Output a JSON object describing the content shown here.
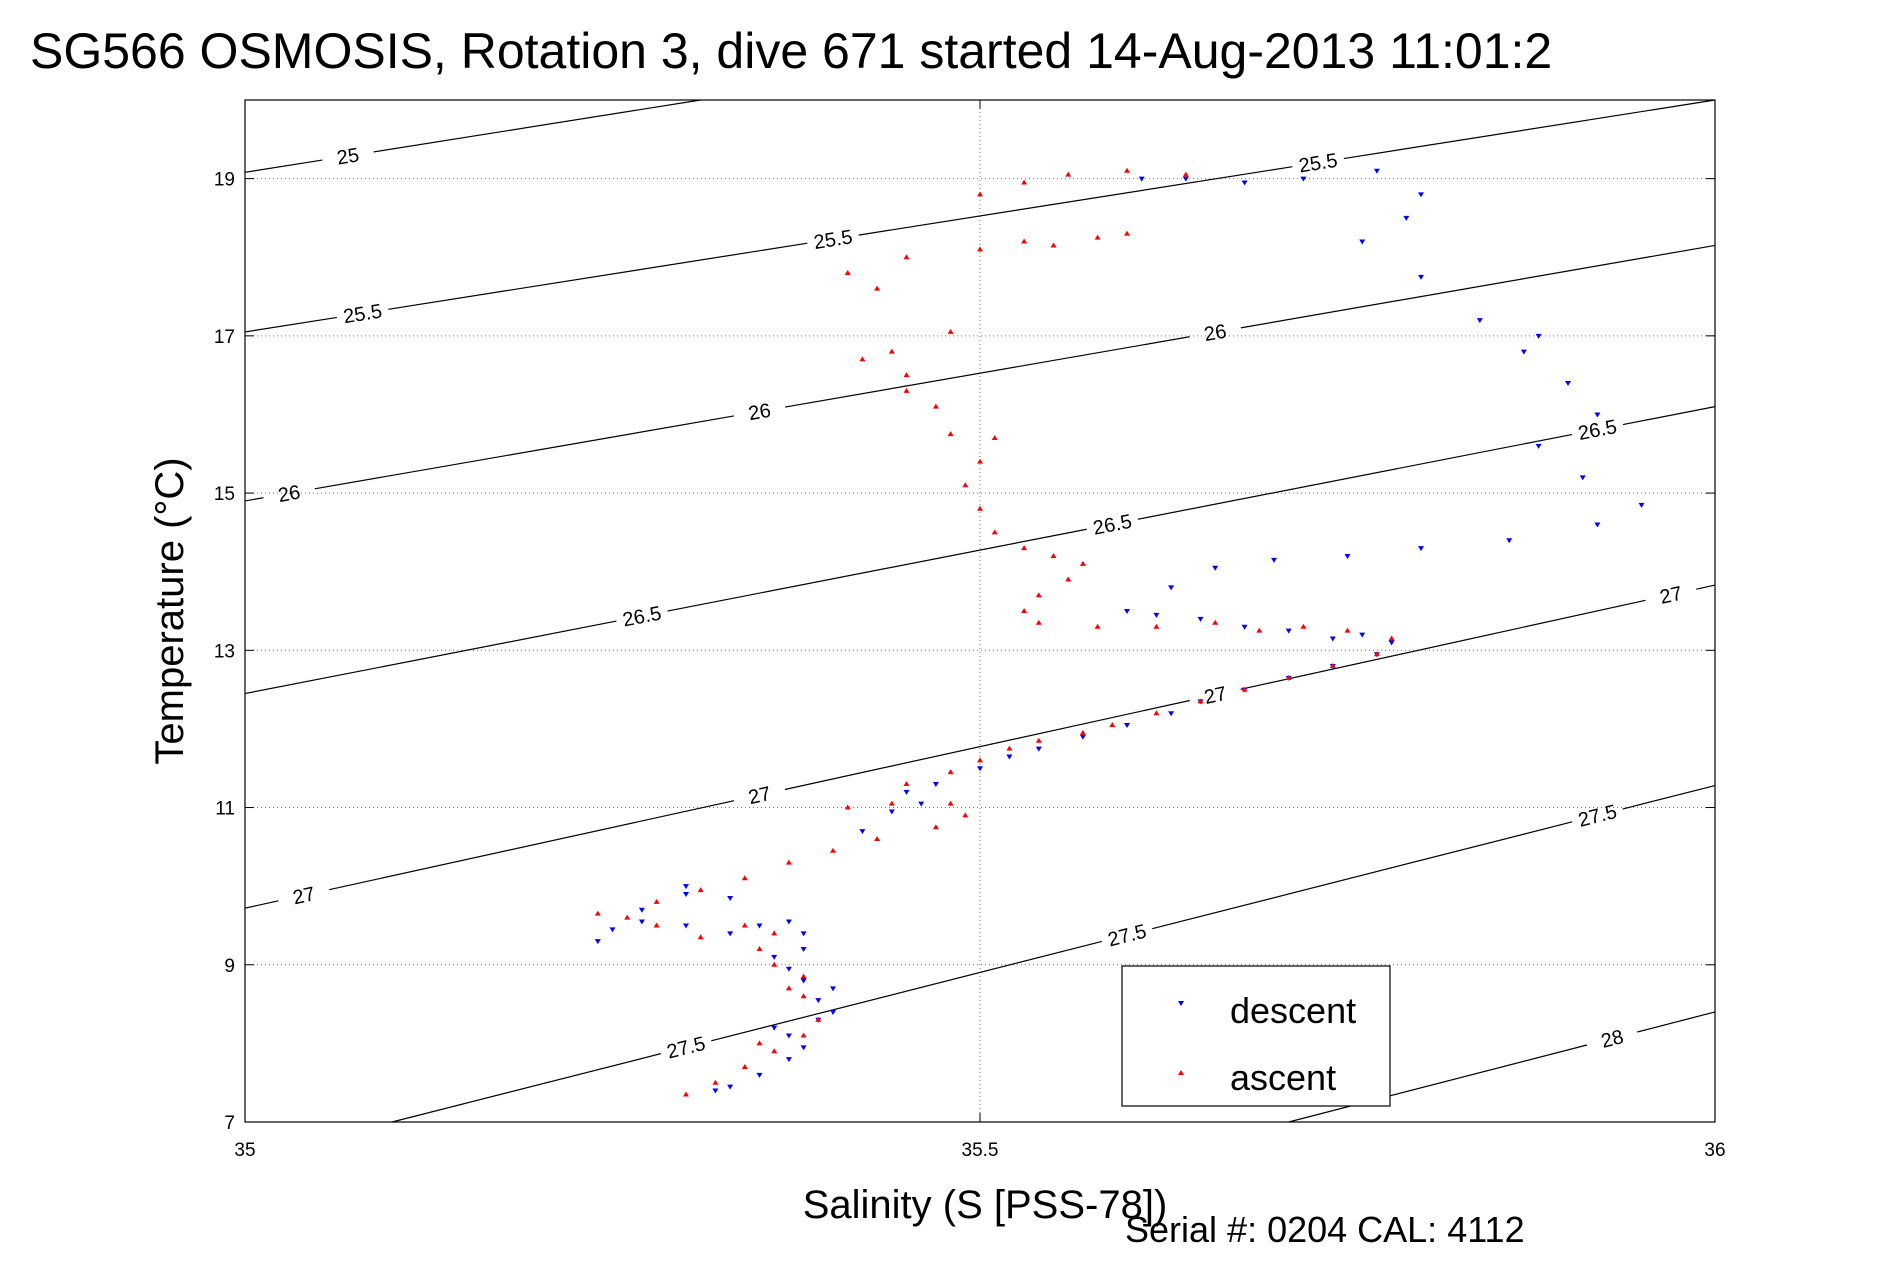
{
  "chart_data": {
    "type": "scatter",
    "title": "SG566 OSMOSIS, Rotation 3, dive 671 started 14-Aug-2013 11:01:2",
    "xlabel": "Salinity (S [PSS-78])",
    "ylabel": "Temperature (°C)",
    "xlim": [
      35,
      36
    ],
    "ylim": [
      7,
      20
    ],
    "xticks": [
      "35",
      "35.5",
      "36"
    ],
    "yticks": [
      "7",
      "9",
      "11",
      "13",
      "15",
      "17",
      "19"
    ],
    "grid": "dotted",
    "legend_position": "bottom-right",
    "footer": "Serial #: 0204  CAL: 4112",
    "density_contours": [
      {
        "level": "25",
        "line": [
          [
            35.0,
            19.08
          ],
          [
            35.31,
            20.0
          ]
        ],
        "label_at": [
          35.07,
          19.2
        ]
      },
      {
        "level": "25.5",
        "line": [
          [
            35.0,
            17.05
          ],
          [
            36.0,
            20.0
          ]
        ],
        "labels_at": [
          [
            35.08,
            17.3
          ],
          [
            35.4,
            18.3
          ],
          [
            35.73,
            19.2
          ]
        ]
      },
      {
        "level": "26",
        "line": [
          [
            35.0,
            14.9
          ],
          [
            36.0,
            18.15
          ]
        ],
        "labels_at": [
          [
            35.03,
            14.95
          ],
          [
            35.35,
            15.97
          ],
          [
            35.66,
            17.05
          ]
        ]
      },
      {
        "level": "26.5",
        "line": [
          [
            35.0,
            12.45
          ],
          [
            36.0,
            16.1
          ]
        ],
        "labels_at": [
          [
            35.27,
            13.45
          ],
          [
            35.59,
            14.6
          ],
          [
            35.92,
            15.7
          ]
        ]
      },
      {
        "level": "27",
        "line": [
          [
            35.0,
            9.72
          ],
          [
            36.0,
            13.83
          ]
        ],
        "labels_at": [
          [
            35.04,
            9.8
          ],
          [
            35.35,
            11.2
          ],
          [
            35.66,
            12.4
          ],
          [
            35.97,
            13.6
          ]
        ]
      },
      {
        "level": "27.5",
        "line": [
          [
            35.1,
            7.0
          ],
          [
            36.0,
            11.28
          ]
        ],
        "labels_at": [
          [
            35.3,
            8.0
          ],
          [
            35.6,
            9.5
          ],
          [
            35.92,
            10.9
          ]
        ]
      },
      {
        "level": "28",
        "line": [
          [
            35.71,
            7.0
          ],
          [
            36.0,
            8.4
          ]
        ],
        "label_at": [
          35.93,
          8.0
        ]
      }
    ],
    "series": [
      {
        "name": "descent",
        "color": "#0000ff",
        "points": [
          [
            35.32,
            7.4
          ],
          [
            35.33,
            7.45
          ],
          [
            35.35,
            7.6
          ],
          [
            35.37,
            7.8
          ],
          [
            35.38,
            7.95
          ],
          [
            35.37,
            8.1
          ],
          [
            35.36,
            8.2
          ],
          [
            35.39,
            8.3
          ],
          [
            35.4,
            8.4
          ],
          [
            35.39,
            8.55
          ],
          [
            35.4,
            8.7
          ],
          [
            35.38,
            8.8
          ],
          [
            35.37,
            8.95
          ],
          [
            35.36,
            9.1
          ],
          [
            35.38,
            9.2
          ],
          [
            35.38,
            9.4
          ],
          [
            35.37,
            9.55
          ],
          [
            35.35,
            9.5
          ],
          [
            35.33,
            9.4
          ],
          [
            35.3,
            9.5
          ],
          [
            35.27,
            9.55
          ],
          [
            35.25,
            9.45
          ],
          [
            35.24,
            9.3
          ],
          [
            35.27,
            9.7
          ],
          [
            35.3,
            9.9
          ],
          [
            35.33,
            9.85
          ],
          [
            35.3,
            10.0
          ],
          [
            35.42,
            10.7
          ],
          [
            35.44,
            10.95
          ],
          [
            35.46,
            11.05
          ],
          [
            35.45,
            11.2
          ],
          [
            35.47,
            11.3
          ],
          [
            35.5,
            11.5
          ],
          [
            35.52,
            11.65
          ],
          [
            35.54,
            11.75
          ],
          [
            35.57,
            11.9
          ],
          [
            35.6,
            12.05
          ],
          [
            35.63,
            12.2
          ],
          [
            35.65,
            12.35
          ],
          [
            35.68,
            12.5
          ],
          [
            35.71,
            12.65
          ],
          [
            35.74,
            12.8
          ],
          [
            35.77,
            12.95
          ],
          [
            35.78,
            13.1
          ],
          [
            35.76,
            13.2
          ],
          [
            35.74,
            13.15
          ],
          [
            35.71,
            13.25
          ],
          [
            35.68,
            13.3
          ],
          [
            35.65,
            13.4
          ],
          [
            35.62,
            13.45
          ],
          [
            35.6,
            13.5
          ],
          [
            35.63,
            13.8
          ],
          [
            35.66,
            14.05
          ],
          [
            35.7,
            14.15
          ],
          [
            35.75,
            14.2
          ],
          [
            35.8,
            14.3
          ],
          [
            35.86,
            14.4
          ],
          [
            35.92,
            14.6
          ],
          [
            35.95,
            14.85
          ],
          [
            35.91,
            15.2
          ],
          [
            35.88,
            15.6
          ],
          [
            35.92,
            16.0
          ],
          [
            35.9,
            16.4
          ],
          [
            35.87,
            16.8
          ],
          [
            35.88,
            17.0
          ],
          [
            35.84,
            17.2
          ],
          [
            35.8,
            17.75
          ],
          [
            35.76,
            18.2
          ],
          [
            35.79,
            18.5
          ],
          [
            35.8,
            18.8
          ],
          [
            35.77,
            19.1
          ],
          [
            35.72,
            19.0
          ],
          [
            35.68,
            18.95
          ],
          [
            35.64,
            19.0
          ],
          [
            35.61,
            19.0
          ]
        ]
      },
      {
        "name": "ascent",
        "color": "#ff0000",
        "points": [
          [
            35.3,
            7.35
          ],
          [
            35.32,
            7.5
          ],
          [
            35.34,
            7.7
          ],
          [
            35.36,
            7.9
          ],
          [
            35.35,
            8.0
          ],
          [
            35.38,
            8.1
          ],
          [
            35.39,
            8.3
          ],
          [
            35.38,
            8.6
          ],
          [
            35.37,
            8.7
          ],
          [
            35.38,
            8.85
          ],
          [
            35.36,
            9.0
          ],
          [
            35.35,
            9.2
          ],
          [
            35.36,
            9.4
          ],
          [
            35.34,
            9.5
          ],
          [
            35.31,
            9.35
          ],
          [
            35.28,
            9.5
          ],
          [
            35.26,
            9.6
          ],
          [
            35.24,
            9.65
          ],
          [
            35.28,
            9.8
          ],
          [
            35.31,
            9.95
          ],
          [
            35.34,
            10.1
          ],
          [
            35.37,
            10.3
          ],
          [
            35.4,
            10.45
          ],
          [
            35.43,
            10.6
          ],
          [
            35.47,
            10.75
          ],
          [
            35.49,
            10.9
          ],
          [
            35.48,
            11.05
          ],
          [
            35.44,
            11.05
          ],
          [
            35.41,
            11.0
          ],
          [
            35.45,
            11.3
          ],
          [
            35.48,
            11.45
          ],
          [
            35.5,
            11.6
          ],
          [
            35.52,
            11.75
          ],
          [
            35.54,
            11.85
          ],
          [
            35.57,
            11.95
          ],
          [
            35.59,
            12.05
          ],
          [
            35.62,
            12.2
          ],
          [
            35.65,
            12.35
          ],
          [
            35.68,
            12.5
          ],
          [
            35.71,
            12.65
          ],
          [
            35.74,
            12.8
          ],
          [
            35.77,
            12.95
          ],
          [
            35.78,
            13.15
          ],
          [
            35.75,
            13.25
          ],
          [
            35.72,
            13.3
          ],
          [
            35.69,
            13.25
          ],
          [
            35.66,
            13.35
          ],
          [
            35.62,
            13.3
          ],
          [
            35.58,
            13.3
          ],
          [
            35.54,
            13.35
          ],
          [
            35.53,
            13.5
          ],
          [
            35.54,
            13.7
          ],
          [
            35.56,
            13.9
          ],
          [
            35.57,
            14.1
          ],
          [
            35.55,
            14.2
          ],
          [
            35.53,
            14.3
          ],
          [
            35.51,
            14.5
          ],
          [
            35.5,
            14.8
          ],
          [
            35.49,
            15.1
          ],
          [
            35.5,
            15.4
          ],
          [
            35.51,
            15.7
          ],
          [
            35.48,
            15.75
          ],
          [
            35.47,
            16.1
          ],
          [
            35.45,
            16.3
          ],
          [
            35.45,
            16.5
          ],
          [
            35.42,
            16.7
          ],
          [
            35.44,
            16.8
          ],
          [
            35.48,
            17.05
          ],
          [
            35.43,
            17.6
          ],
          [
            35.41,
            17.8
          ],
          [
            35.45,
            18.0
          ],
          [
            35.5,
            18.1
          ],
          [
            35.55,
            18.15
          ],
          [
            35.6,
            18.3
          ],
          [
            35.58,
            18.25
          ],
          [
            35.53,
            18.2
          ],
          [
            35.5,
            18.8
          ],
          [
            35.53,
            18.95
          ],
          [
            35.56,
            19.05
          ],
          [
            35.6,
            19.1
          ],
          [
            35.64,
            19.05
          ]
        ]
      }
    ]
  }
}
